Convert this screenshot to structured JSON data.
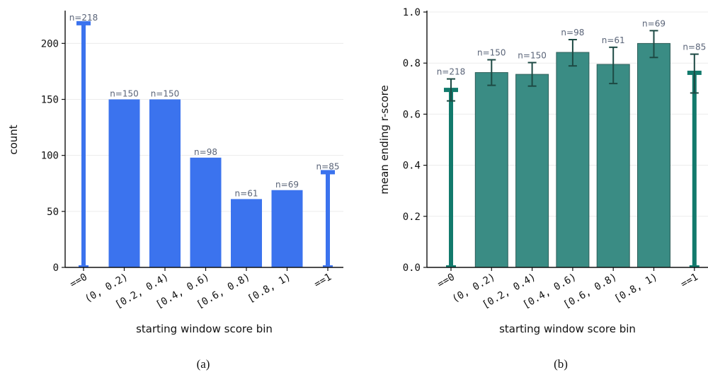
{
  "chart_data": [
    {
      "type": "bar",
      "panel_caption": "(a)",
      "categories": [
        "==0",
        "(0, 0.2)",
        "[0.2, 0.4)",
        "[0.4, 0.6)",
        "[0.6, 0.8)",
        "[0.8, 1)",
        "==1"
      ],
      "values": [
        218,
        150,
        150,
        98,
        61,
        69,
        85
      ],
      "n_labels": [
        "n=218",
        "n=150",
        "n=150",
        "n=98",
        "n=61",
        "n=69",
        "n=85"
      ],
      "xlabel": "starting window score bin",
      "ylabel": "count",
      "ylim": [
        0,
        228
      ],
      "yticks": [
        0,
        50,
        100,
        150,
        200
      ],
      "ytick_labels": [
        "0",
        "50",
        "100",
        "150",
        "200"
      ],
      "color": "#3b73ee",
      "grid": "horizontal"
    },
    {
      "type": "bar",
      "panel_caption": "(b)",
      "categories": [
        "==0",
        "(0, 0.2)",
        "[0.2, 0.4)",
        "[0.4, 0.6)",
        "[0.6, 0.8)",
        "[0.8, 1)",
        "==1"
      ],
      "values": [
        0.695,
        0.763,
        0.756,
        0.842,
        0.795,
        0.877,
        0.762
      ],
      "error": [
        [
          0.652,
          0.738
        ],
        [
          0.713,
          0.813
        ],
        [
          0.71,
          0.802
        ],
        [
          0.789,
          0.892
        ],
        [
          0.72,
          0.862
        ],
        [
          0.822,
          0.927
        ],
        [
          0.683,
          0.835
        ]
      ],
      "n_labels": [
        "n=218",
        "n=150",
        "n=150",
        "n=98",
        "n=61",
        "n=69",
        "n=85"
      ],
      "xlabel": "starting window score bin",
      "ylabel": "mean ending r-score",
      "ylim": [
        0,
        1.0
      ],
      "yticks": [
        0,
        0.2,
        0.4,
        0.6,
        0.8,
        1.0
      ],
      "ytick_labels": [
        "0.0",
        "0.2",
        "0.4",
        "0.6",
        "0.8",
        "1.0"
      ],
      "color": "#3a8c84",
      "edge_color": "#2f5f5a",
      "errorbar_color": "#1d4a44",
      "grid": "horizontal"
    }
  ]
}
